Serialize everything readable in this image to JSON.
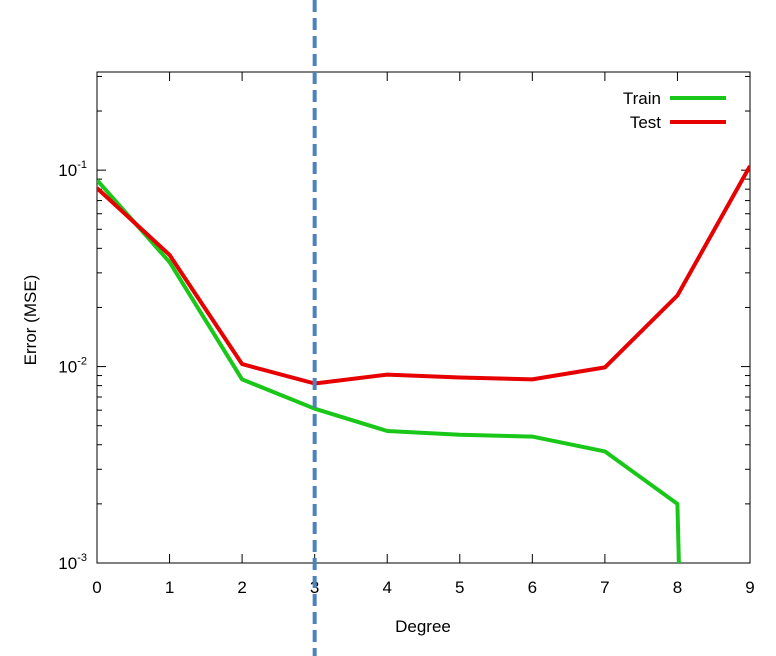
{
  "chart_data": {
    "type": "line",
    "title": "",
    "xlabel": "Degree",
    "ylabel": "Error (MSE)",
    "x": [
      0,
      1,
      2,
      3,
      4,
      5,
      6,
      7,
      8,
      9
    ],
    "xlim": [
      0,
      9
    ],
    "ylim": [
      0.001,
      0.316
    ],
    "yscale": "log",
    "x_ticks": [
      "0",
      "1",
      "2",
      "3",
      "4",
      "5",
      "6",
      "7",
      "8",
      "9"
    ],
    "y_ticks": [
      {
        "base": "10",
        "exp": "-3",
        "value": 0.001
      },
      {
        "base": "10",
        "exp": "-2",
        "value": 0.01
      },
      {
        "base": "10",
        "exp": "-1",
        "value": 0.1
      }
    ],
    "grid": false,
    "legend_position": "top-right",
    "series": [
      {
        "name": "Train",
        "color": "#19c719",
        "x": [
          0,
          1,
          2,
          3,
          4,
          5,
          6,
          7,
          8,
          8.02
        ],
        "values": [
          0.089,
          0.034,
          0.0086,
          0.0061,
          0.0047,
          0.0045,
          0.0044,
          0.0037,
          0.002,
          0.001
        ]
      },
      {
        "name": "Test",
        "color": "#e60000",
        "x": [
          0,
          1,
          2,
          3,
          4,
          5,
          6,
          7,
          8,
          9
        ],
        "values": [
          0.081,
          0.037,
          0.0103,
          0.0082,
          0.0091,
          0.0088,
          0.0086,
          0.0099,
          0.023,
          0.105
        ]
      }
    ],
    "annotations": [
      {
        "type": "vertical-dashed-line",
        "x": 3,
        "color": "#4f81bd"
      }
    ]
  }
}
